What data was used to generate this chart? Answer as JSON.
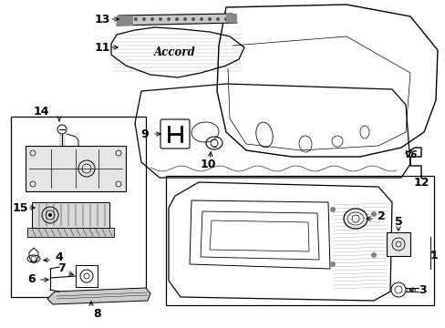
{
  "bg_color": "#ffffff",
  "line_color": "#000000",
  "figsize": [
    4.89,
    3.6
  ],
  "dpi": 100,
  "xlim": [
    0,
    489
  ],
  "ylim": [
    0,
    360
  ]
}
